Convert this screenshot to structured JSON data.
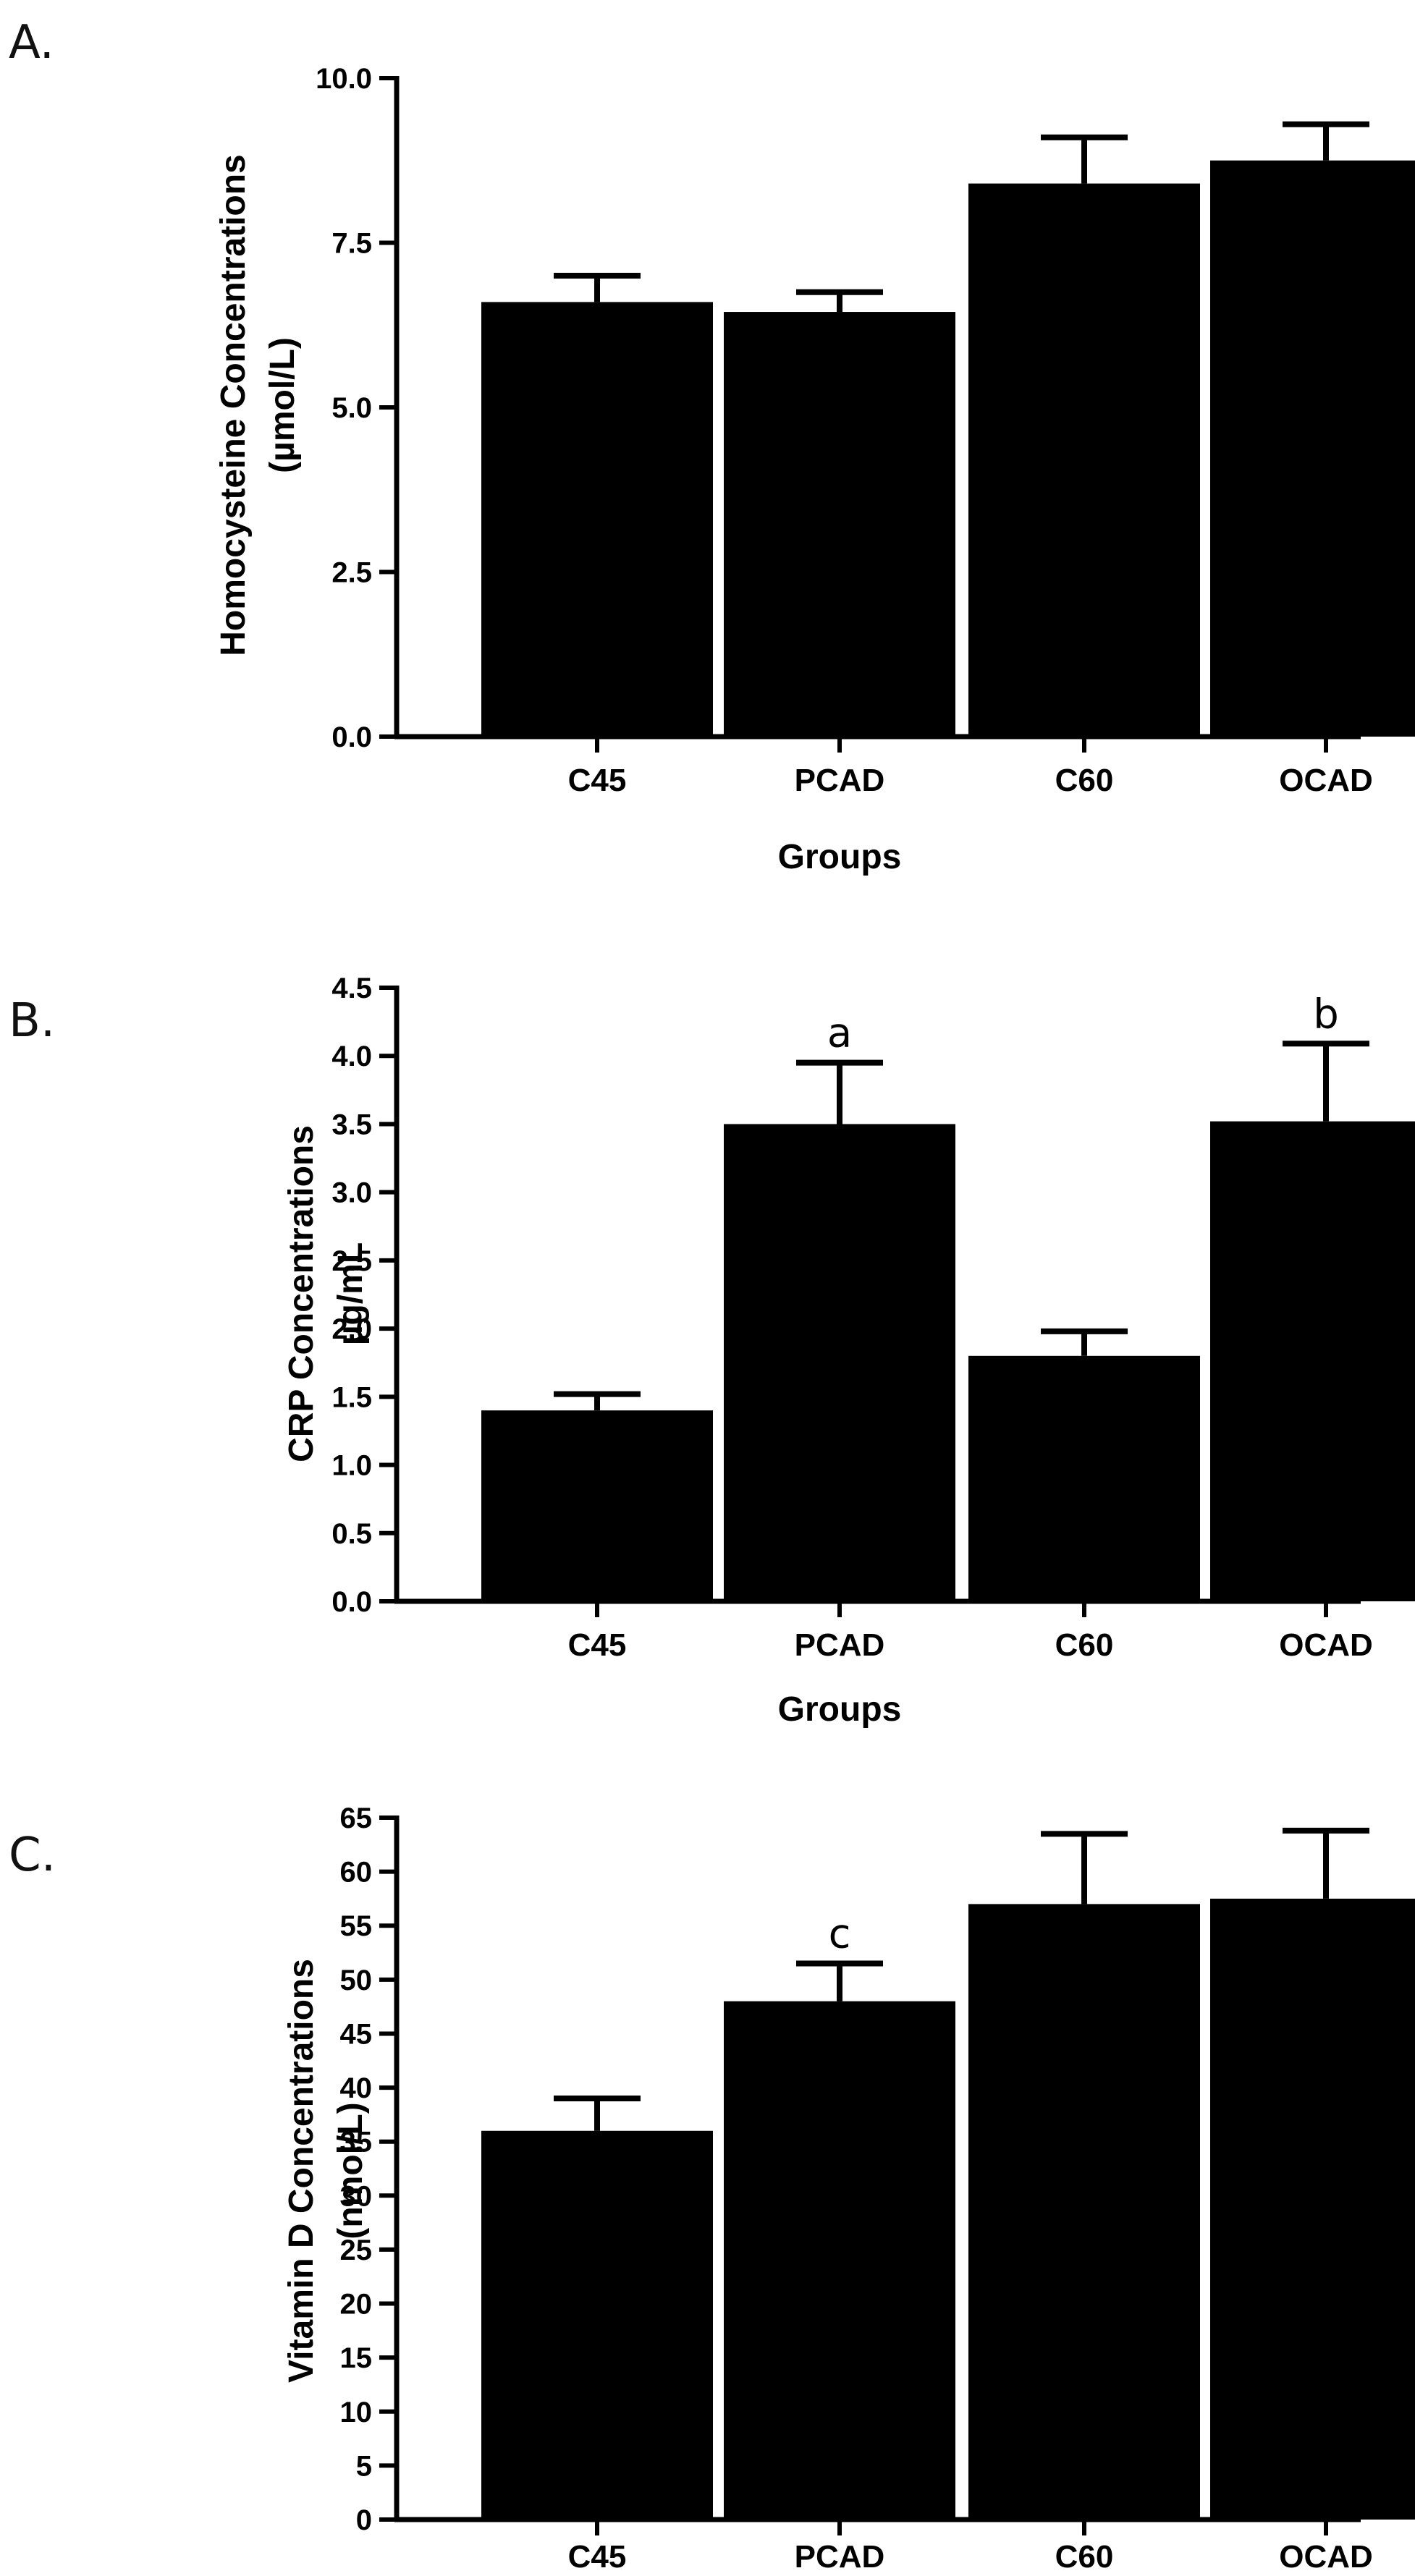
{
  "chart_data": [
    {
      "type": "bar",
      "panel_label": "A.",
      "categories": [
        "C45",
        "PCAD",
        "C60",
        "OCAD"
      ],
      "values": [
        6.6,
        6.45,
        8.4,
        8.75
      ],
      "errors": [
        0.4,
        0.3,
        0.7,
        0.55
      ],
      "annotations": [
        "",
        "",
        "",
        ""
      ],
      "ylabel_line1": "Homocysteine Concentrations",
      "ylabel_line2": "(µmol/L)",
      "xlabel": "Groups",
      "ylim": [
        0,
        10
      ],
      "yticks": [
        0,
        2.5,
        5,
        7.5,
        10
      ],
      "ytick_labels": [
        "0.0",
        "2.5",
        "5.0",
        "7.5",
        "10.0"
      ],
      "bar_color": "#000000",
      "grid": false
    },
    {
      "type": "bar",
      "panel_label": "B.",
      "categories": [
        "C45",
        "PCAD",
        "C60",
        "OCAD"
      ],
      "values": [
        1.4,
        3.5,
        1.8,
        3.52
      ],
      "errors": [
        0.12,
        0.45,
        0.18,
        0.57
      ],
      "annotations": [
        "",
        "a",
        "",
        "b"
      ],
      "ylabel_line1": "CRP Concentrations",
      "ylabel_line2": "µg/mL",
      "xlabel": "Groups",
      "ylim": [
        0,
        4.5
      ],
      "yticks": [
        0,
        0.5,
        1,
        1.5,
        2,
        2.5,
        3,
        3.5,
        4,
        4.5
      ],
      "ytick_labels": [
        "0.0",
        "0.5",
        "1.0",
        "1.5",
        "2.0",
        "2.5",
        "3.0",
        "3.5",
        "4.0",
        "4.5"
      ],
      "bar_color": "#000000",
      "grid": false
    },
    {
      "type": "bar",
      "panel_label": "C.",
      "categories": [
        "C45",
        "PCAD",
        "C60",
        "OCAD"
      ],
      "values": [
        36,
        48,
        57,
        57.5
      ],
      "errors": [
        3,
        3.5,
        6.5,
        6.3
      ],
      "annotations": [
        "",
        "c",
        "",
        ""
      ],
      "ylabel_line1": "Vitamin D Concentrations",
      "ylabel_line2": "(nmol/L)",
      "xlabel": "",
      "ylim": [
        0,
        65
      ],
      "yticks": [
        0,
        5,
        10,
        15,
        20,
        25,
        30,
        35,
        40,
        45,
        50,
        55,
        60,
        65
      ],
      "ytick_labels": [
        "0",
        "5",
        "10",
        "15",
        "20",
        "25",
        "30",
        "35",
        "40",
        "45",
        "50",
        "55",
        "60",
        "65"
      ],
      "bar_color": "#000000",
      "grid": false
    }
  ]
}
